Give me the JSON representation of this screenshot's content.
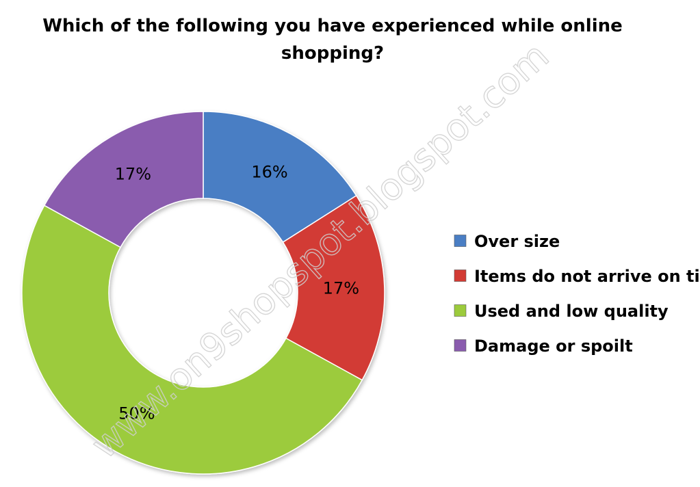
{
  "chart_data": {
    "type": "pie",
    "title_lines": [
      "Which of the following you have experienced while online",
      "shopping?"
    ],
    "categories": [
      "Over size",
      "Items do not arrive on time",
      "Used and low quality",
      "Damage or spoilt"
    ],
    "values": [
      16,
      17,
      50,
      17
    ],
    "labels": [
      "16%",
      "17%",
      "50%",
      "17%"
    ],
    "colors": [
      "#4a7ec4",
      "#d23b34",
      "#9ccb3c",
      "#8a5cae"
    ],
    "legend_position": "right",
    "donut": true
  },
  "watermark": "www.on9shopspot.blogspot.com"
}
